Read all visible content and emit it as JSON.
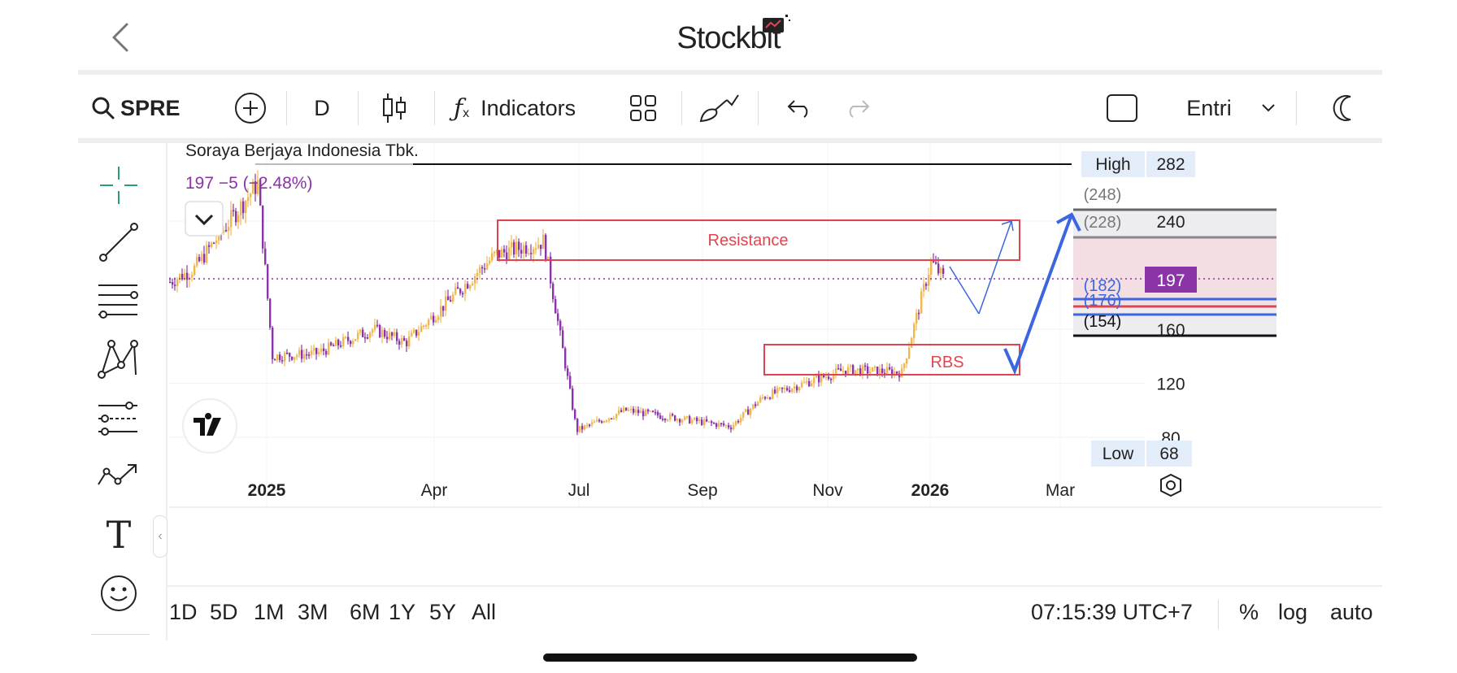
{
  "app": {
    "title": "Stockbit"
  },
  "toolbar": {
    "symbol": "SPRE",
    "interval": "D",
    "indicators_label": "Indicators",
    "layout_name": "Entri"
  },
  "chart": {
    "company_name": "Soraya Berjaya Indonesia Tbk.",
    "quote": "197  −5 (−2.48%)",
    "high_label": "High",
    "high_value": "282",
    "low_label": "Low",
    "low_value": "68",
    "last_price": "197",
    "annotation_resistance": "Resistance",
    "annotation_rbs": "RBS",
    "levels": [
      "(248)",
      "(228)",
      "(182)",
      "(176)",
      "(154)"
    ],
    "colors": {
      "up": "#f0b84c",
      "down": "#8a34a8",
      "annotation": "#e0454f",
      "arrow": "#3b66e0",
      "last_price_badge": "#8a34a8"
    },
    "chart_data": {
      "type": "candlestick",
      "y_ticks": [
        "240",
        "160",
        "120",
        "80"
      ],
      "x_ticks": [
        "2025",
        "Apr",
        "Jul",
        "Sep",
        "Nov",
        "2026",
        "Mar"
      ],
      "series": [
        {
          "name": "SPRE",
          "points": [
            [
              "Nov",
              195
            ],
            [
              "Dec",
              205
            ],
            [
              "Dec",
              268
            ],
            [
              "Jan",
              140
            ],
            [
              "Feb",
              142
            ],
            [
              "Mar",
              160
            ],
            [
              "Apr",
              150
            ],
            [
              "May",
              215
            ],
            [
              "Jun",
              225
            ],
            [
              "Jul",
              85
            ],
            [
              "Aug",
              100
            ],
            [
              "Sep",
              88
            ],
            [
              "Oct",
              110
            ],
            [
              "Nov",
              130
            ],
            [
              "Dec",
              128
            ],
            [
              "Dec",
              210
            ],
            [
              "2026",
              197
            ]
          ]
        }
      ]
    }
  },
  "bottom": {
    "ranges": [
      "1D",
      "5D",
      "1M",
      "3M",
      "6M",
      "1Y",
      "5Y",
      "All"
    ],
    "time": "07:15:39 UTC+7",
    "percent": "%",
    "log": "log",
    "auto": "auto"
  },
  "icons": [
    "chevron-left-icon",
    "search-icon",
    "plus-circle-icon",
    "candles-icon",
    "function-icon",
    "grid-icon",
    "brush-icon",
    "undo-icon",
    "redo-icon",
    "square-icon",
    "chevron-down-icon",
    "moon-icon",
    "crosshair-icon",
    "trendline-icon",
    "fib-icon",
    "pattern-icon",
    "forecast-icon",
    "path-icon",
    "text-icon",
    "emoji-icon",
    "tradingview-logo-icon",
    "settings-hex-icon"
  ]
}
